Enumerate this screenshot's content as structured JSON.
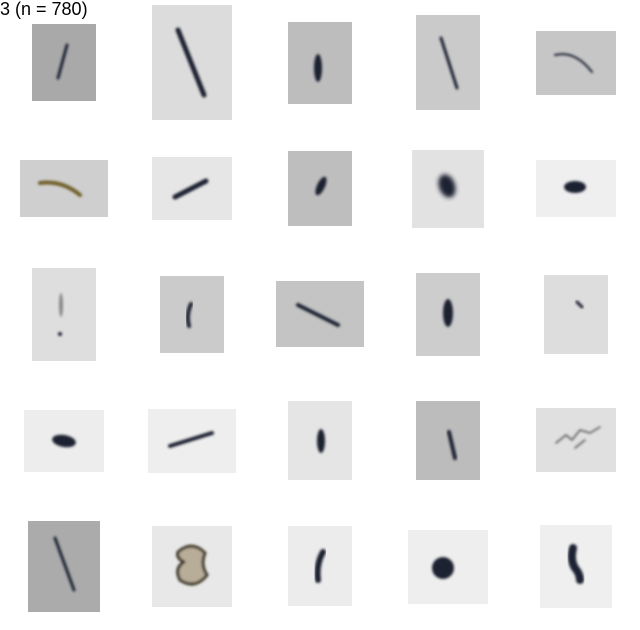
{
  "title": "3 (n = 780)"
}
